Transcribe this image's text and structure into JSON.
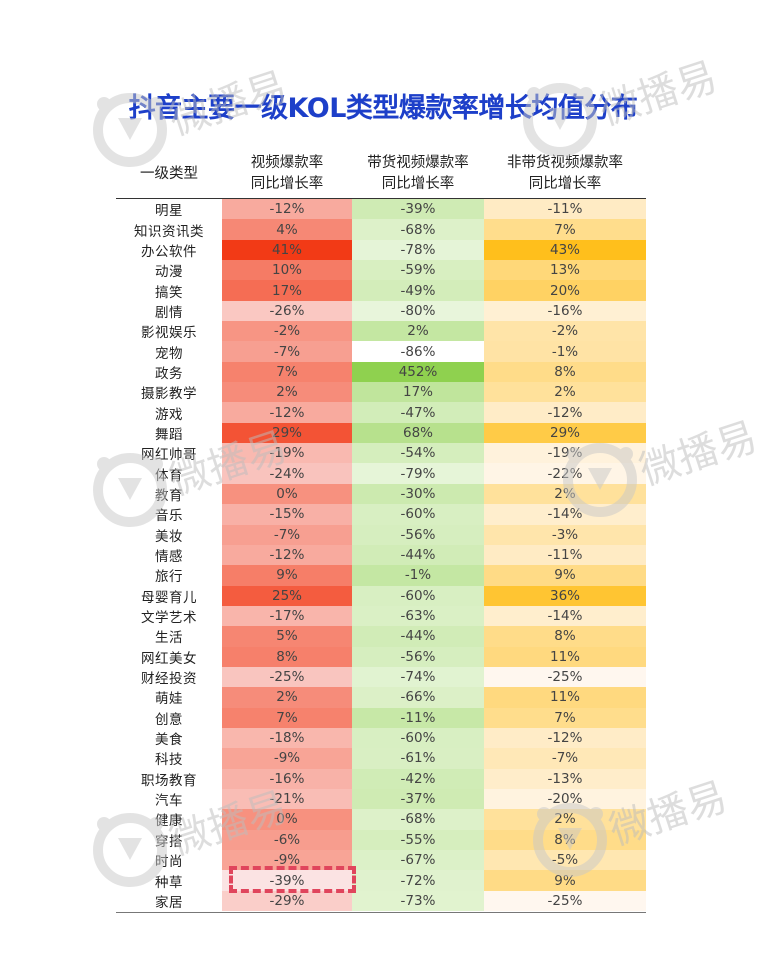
{
  "title": "抖音主要一级KOL类型爆款率增长均值分布",
  "header": {
    "col0": "一级类型",
    "col1_line1": "视频爆款率",
    "col1_line2": "同比增长率",
    "col2_line1": "带货视频爆款率",
    "col2_line2": "同比增长率",
    "col3_line1": "非带货视频爆款率",
    "col3_line2": "同比增长率"
  },
  "watermark": "微播易",
  "colors": {
    "title": "#1d3fc9",
    "col1_high": "#f23a16",
    "col1_low": "#fbe3e3",
    "col2_high": "#8fd14f",
    "col2_low": "#ffffff",
    "col3_high": "#ffbf1c",
    "col3_low": "#fff7ef",
    "highlight_border": "#e0455c"
  },
  "chart_data": {
    "type": "table",
    "title": "抖音主要一级KOL类型爆款率增长均值分布",
    "columns": [
      "一级类型",
      "视频爆款率同比增长率",
      "带货视频爆款率同比增长率",
      "非带货视频爆款率同比增长率"
    ],
    "rows": [
      {
        "cat": "明星",
        "v1": "-12%",
        "v2": "-39%",
        "v3": "-11%"
      },
      {
        "cat": "知识资讯类",
        "v1": "4%",
        "v2": "-68%",
        "v3": "7%"
      },
      {
        "cat": "办公软件",
        "v1": "41%",
        "v2": "-78%",
        "v3": "43%"
      },
      {
        "cat": "动漫",
        "v1": "10%",
        "v2": "-59%",
        "v3": "13%"
      },
      {
        "cat": "搞笑",
        "v1": "17%",
        "v2": "-49%",
        "v3": "20%"
      },
      {
        "cat": "剧情",
        "v1": "-26%",
        "v2": "-80%",
        "v3": "-16%"
      },
      {
        "cat": "影视娱乐",
        "v1": "-2%",
        "v2": "2%",
        "v3": "-2%"
      },
      {
        "cat": "宠物",
        "v1": "-7%",
        "v2": "-86%",
        "v3": "-1%"
      },
      {
        "cat": "政务",
        "v1": "7%",
        "v2": "452%",
        "v3": "8%"
      },
      {
        "cat": "摄影教学",
        "v1": "2%",
        "v2": "17%",
        "v3": "2%"
      },
      {
        "cat": "游戏",
        "v1": "-12%",
        "v2": "-47%",
        "v3": "-12%"
      },
      {
        "cat": "舞蹈",
        "v1": "29%",
        "v2": "68%",
        "v3": "29%"
      },
      {
        "cat": "网红帅哥",
        "v1": "-19%",
        "v2": "-54%",
        "v3": "-19%"
      },
      {
        "cat": "体育",
        "v1": "-24%",
        "v2": "-79%",
        "v3": "-22%"
      },
      {
        "cat": "教育",
        "v1": "0%",
        "v2": "-30%",
        "v3": "2%"
      },
      {
        "cat": "音乐",
        "v1": "-15%",
        "v2": "-60%",
        "v3": "-14%"
      },
      {
        "cat": "美妆",
        "v1": "-7%",
        "v2": "-56%",
        "v3": "-3%"
      },
      {
        "cat": "情感",
        "v1": "-12%",
        "v2": "-44%",
        "v3": "-11%"
      },
      {
        "cat": "旅行",
        "v1": "9%",
        "v2": "-1%",
        "v3": "9%"
      },
      {
        "cat": "母婴育儿",
        "v1": "25%",
        "v2": "-60%",
        "v3": "36%"
      },
      {
        "cat": "文学艺术",
        "v1": "-17%",
        "v2": "-63%",
        "v3": "-14%"
      },
      {
        "cat": "生活",
        "v1": "5%",
        "v2": "-44%",
        "v3": "8%"
      },
      {
        "cat": "网红美女",
        "v1": "8%",
        "v2": "-56%",
        "v3": "11%"
      },
      {
        "cat": "财经投资",
        "v1": "-25%",
        "v2": "-74%",
        "v3": "-25%"
      },
      {
        "cat": "萌娃",
        "v1": "2%",
        "v2": "-66%",
        "v3": "11%"
      },
      {
        "cat": "创意",
        "v1": "7%",
        "v2": "-11%",
        "v3": "7%"
      },
      {
        "cat": "美食",
        "v1": "-18%",
        "v2": "-60%",
        "v3": "-12%"
      },
      {
        "cat": "科技",
        "v1": "-9%",
        "v2": "-61%",
        "v3": "-7%"
      },
      {
        "cat": "职场教育",
        "v1": "-16%",
        "v2": "-42%",
        "v3": "-13%"
      },
      {
        "cat": "汽车",
        "v1": "-21%",
        "v2": "-37%",
        "v3": "-20%"
      },
      {
        "cat": "健康",
        "v1": "0%",
        "v2": "-68%",
        "v3": "2%"
      },
      {
        "cat": "穿搭",
        "v1": "-6%",
        "v2": "-55%",
        "v3": "8%"
      },
      {
        "cat": "时尚",
        "v1": "-9%",
        "v2": "-67%",
        "v3": "-5%"
      },
      {
        "cat": "种草",
        "v1": "-39%",
        "v2": "-72%",
        "v3": "9%"
      },
      {
        "cat": "家居",
        "v1": "-29%",
        "v2": "-73%",
        "v3": "-25%"
      }
    ]
  }
}
